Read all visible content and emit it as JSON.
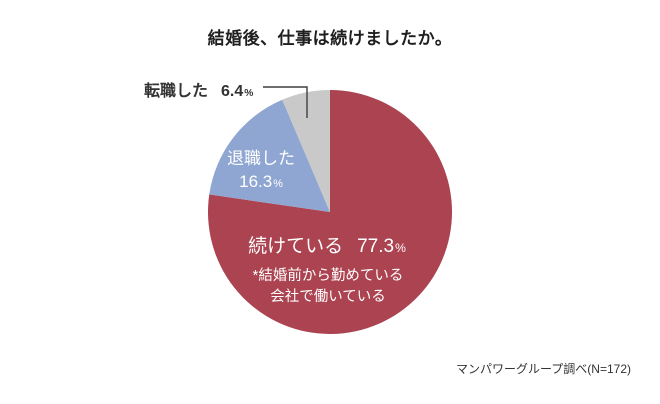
{
  "title": "結婚後、仕事は続けましたか。",
  "percent_symbol": "%",
  "source_note": "マンパワーグループ調べ(N=172)",
  "colors": {
    "continuing": "#AB4350",
    "quit": "#8EA6D1",
    "changed_jobs": "#C9C9C9",
    "leader_line": "#3F3F3F",
    "title_text": "#1F1F1F",
    "dark_label_text": "#333333",
    "light_label_text": "#FFFFFF"
  },
  "chart_data": {
    "type": "pie",
    "title": "結婚後、仕事は続けましたか。",
    "start_angle": "top",
    "direction": "clockwise",
    "legend": "none",
    "slices": [
      {
        "key": "continuing",
        "label": "続けている",
        "value": 77.3,
        "color": "#AB4350",
        "label_color": "#FFFFFF",
        "label_position": "inside"
      },
      {
        "key": "quit",
        "label": "退職した",
        "value": 16.3,
        "color": "#8EA6D1",
        "label_color": "#FFFFFF",
        "label_position": "inside"
      },
      {
        "key": "changed-jobs",
        "label": "転職した",
        "value": 6.4,
        "color": "#C9C9C9",
        "label_color": "#333333",
        "label_position": "outside-callout"
      }
    ],
    "annotation": {
      "line1": "*結婚前から勤めている",
      "line2": "会社で働いている"
    },
    "source": "マンパワーグループ調べ(N=172)"
  }
}
